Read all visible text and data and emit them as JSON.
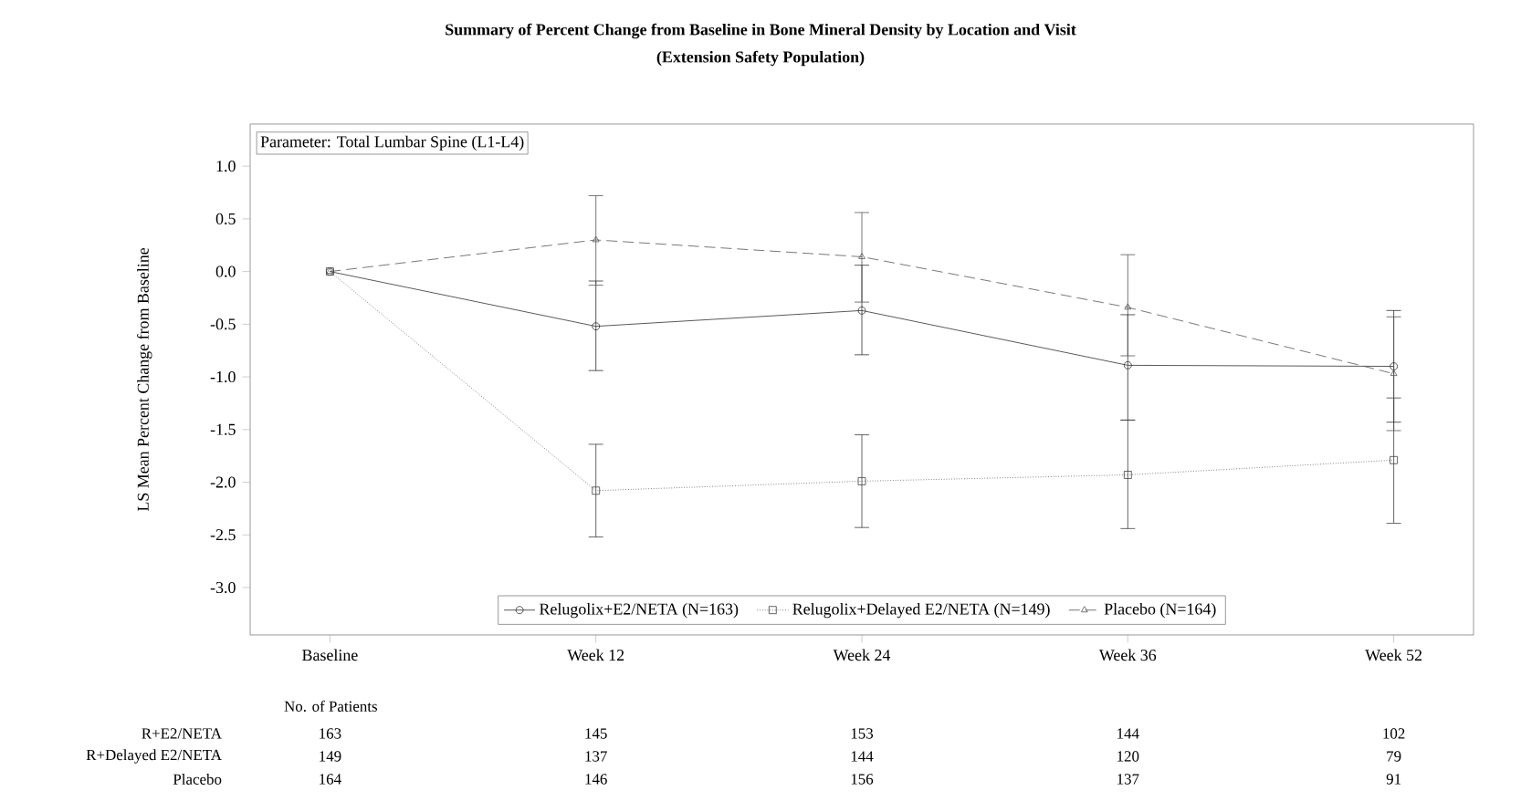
{
  "chart_data": {
    "type": "line",
    "title": "Summary of Percent Change from Baseline in Bone Mineral Density by Location and Visit",
    "subtitle": "(Extension Safety Population)",
    "ylabel": "LS Mean Percent Change from Baseline",
    "annotations": [
      "Parameter: Total Lumbar Spine (L1-L4)",
      "No. of Patients",
      "R+E2/NETA",
      "163",
      "145",
      "153",
      "144",
      "102",
      "R+Delayed E2/NETA",
      "149",
      "137",
      "144",
      "120",
      "79",
      "Placebo",
      "164",
      "146",
      "156",
      "137",
      "91"
    ],
    "ylim": [
      -3.45,
      1.4
    ],
    "categories": [
      "Baseline",
      "Week 12",
      "Week 24",
      "Week 36",
      "Week 52"
    ],
    "yticks": [
      {
        "value": 1,
        "label": "1.0"
      },
      {
        "value": 0.5,
        "label": "0.5"
      },
      {
        "value": 0,
        "label": "0.0"
      },
      {
        "value": -0.5,
        "label": "-0.5"
      },
      {
        "value": -1,
        "label": "-1.0"
      },
      {
        "value": -1.5,
        "label": "-1.5"
      },
      {
        "value": -2,
        "label": "-2.0"
      },
      {
        "value": -2.5,
        "label": "-2.5"
      },
      {
        "value": -3,
        "label": "-3.0"
      }
    ],
    "legend": "bottom",
    "series": [
      {
        "name": "Relugolix+E2/NETA (N=163)",
        "color": "#303030",
        "marker": "circle",
        "line_style": "solid",
        "values": [
          0,
          -0.52,
          -0.37,
          -0.89,
          -0.9
        ],
        "errors": [
          null,
          [
            -0.94,
            -0.09
          ],
          [
            -0.79,
            0.06
          ],
          [
            -1.41,
            -0.41
          ],
          [
            -1.43,
            -0.37
          ]
        ]
      },
      {
        "name": "Relugolix+Delayed E2/NETA (N=149)",
        "color": "#404040",
        "marker": "square",
        "line_style": "dotted",
        "values": [
          0,
          -2.08,
          -1.99,
          -1.93,
          -1.79
        ],
        "errors": [
          null,
          [
            -2.52,
            -1.64
          ],
          [
            -2.43,
            -1.55
          ],
          [
            -2.44,
            -1.41
          ],
          [
            -2.39,
            -1.2
          ]
        ]
      },
      {
        "name": "Placebo (N=164)",
        "color": "#555555",
        "marker": "triangle",
        "line_style": "dashed",
        "values": [
          0,
          0.3,
          0.14,
          -0.34,
          -0.97
        ],
        "errors": [
          null,
          [
            -0.13,
            0.72
          ],
          [
            -0.29,
            0.56
          ],
          [
            -0.8,
            0.16
          ],
          [
            -1.51,
            -0.43
          ]
        ]
      }
    ]
  }
}
